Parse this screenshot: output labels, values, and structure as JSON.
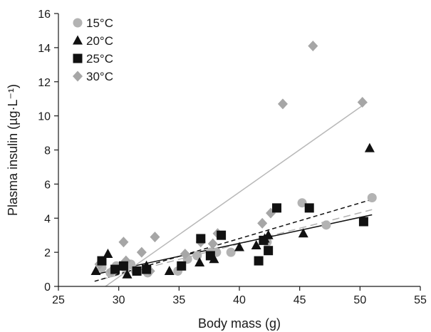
{
  "chart_data": {
    "type": "scatter",
    "title": "",
    "xlabel": "Body mass (g)",
    "ylabel": "Plasma insulin (µg·L⁻¹)",
    "xlim": [
      25,
      55
    ],
    "ylim": [
      0,
      16
    ],
    "xticks": [
      25,
      30,
      35,
      40,
      45,
      50,
      55
    ],
    "yticks": [
      0,
      2,
      4,
      6,
      8,
      10,
      12,
      14,
      16
    ],
    "grid": false,
    "legend": "top-left",
    "series": [
      {
        "name": "15°C",
        "marker": "circle",
        "color": "#b3b3b3",
        "points": [
          [
            28.6,
            1.1
          ],
          [
            29.3,
            0.8
          ],
          [
            29.8,
            1.2
          ],
          [
            30.5,
            1.1
          ],
          [
            31.0,
            1.3
          ],
          [
            31.4,
            0.9
          ],
          [
            32.4,
            0.8
          ],
          [
            34.9,
            0.9
          ],
          [
            35.7,
            1.6
          ],
          [
            36.5,
            1.8
          ],
          [
            37.6,
            2.0
          ],
          [
            38.1,
            2.0
          ],
          [
            39.3,
            2.0
          ],
          [
            42.3,
            2.6
          ],
          [
            45.2,
            4.9
          ],
          [
            47.2,
            3.6
          ],
          [
            51.0,
            5.2
          ]
        ],
        "trend": [
          [
            28.5,
            0.4
          ],
          [
            51.0,
            4.5
          ]
        ],
        "trend_style": "long-dash",
        "trend_color": "#b3b3b3"
      },
      {
        "name": "20°C",
        "marker": "triangle",
        "color": "#111111",
        "points": [
          [
            28.1,
            0.9
          ],
          [
            29.1,
            1.9
          ],
          [
            30.7,
            0.7
          ],
          [
            32.3,
            1.2
          ],
          [
            34.2,
            0.9
          ],
          [
            36.7,
            1.4
          ],
          [
            37.9,
            1.6
          ],
          [
            40.0,
            2.3
          ],
          [
            41.4,
            2.4
          ],
          [
            42.1,
            2.8
          ],
          [
            42.4,
            3.0
          ],
          [
            45.3,
            3.1
          ],
          [
            50.8,
            8.1
          ]
        ],
        "trend": [
          [
            28.0,
            0.7
          ],
          [
            51.0,
            4.2
          ]
        ],
        "trend_style": "solid",
        "trend_color": "#111111"
      },
      {
        "name": "25°C",
        "marker": "square",
        "color": "#111111",
        "points": [
          [
            28.6,
            1.5
          ],
          [
            29.7,
            1.0
          ],
          [
            30.4,
            1.2
          ],
          [
            31.5,
            0.9
          ],
          [
            32.3,
            1.0
          ],
          [
            35.2,
            1.2
          ],
          [
            36.8,
            2.8
          ],
          [
            37.6,
            1.8
          ],
          [
            38.5,
            3.0
          ],
          [
            41.6,
            1.5
          ],
          [
            42.0,
            2.7
          ],
          [
            42.4,
            2.1
          ],
          [
            43.1,
            4.6
          ],
          [
            45.8,
            4.6
          ],
          [
            50.3,
            3.8
          ]
        ],
        "trend": [
          [
            28.0,
            0.3
          ],
          [
            51.0,
            5.1
          ]
        ],
        "trend_style": "short-dash",
        "trend_color": "#111111"
      },
      {
        "name": "30°C",
        "marker": "diamond",
        "color": "#a6a6a6",
        "points": [
          [
            28.4,
            1.3
          ],
          [
            29.4,
            0.9
          ],
          [
            30.4,
            2.6
          ],
          [
            30.6,
            1.5
          ],
          [
            31.9,
            2.0
          ],
          [
            32.6,
            0.9
          ],
          [
            33.0,
            2.9
          ],
          [
            35.5,
            1.9
          ],
          [
            36.8,
            2.6
          ],
          [
            37.8,
            2.5
          ],
          [
            38.2,
            3.1
          ],
          [
            41.9,
            3.7
          ],
          [
            42.6,
            4.3
          ],
          [
            43.6,
            10.7
          ],
          [
            46.1,
            14.1
          ],
          [
            50.2,
            10.8
          ]
        ],
        "trend": [
          [
            28.9,
            0.0
          ],
          [
            50.6,
            10.8
          ]
        ],
        "trend_style": "solid",
        "trend_color": "#b8b8b8"
      }
    ]
  }
}
